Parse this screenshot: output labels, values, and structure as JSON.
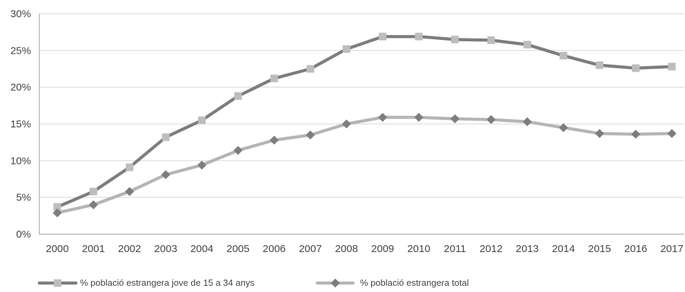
{
  "chart_data": {
    "type": "line",
    "title": "",
    "xlabel": "",
    "ylabel": "",
    "categories": [
      "2000",
      "2001",
      "2002",
      "2003",
      "2004",
      "2005",
      "2006",
      "2007",
      "2008",
      "2009",
      "2010",
      "2011",
      "2012",
      "2013",
      "2014",
      "2015",
      "2016",
      "2017"
    ],
    "ylim": [
      0,
      30
    ],
    "yticks": [
      0,
      5,
      10,
      15,
      20,
      25,
      30
    ],
    "ytick_labels": [
      "0%",
      "5%",
      "10%",
      "15%",
      "20%",
      "25%",
      "30%"
    ],
    "grid": true,
    "legend_position": "bottom-left",
    "series": [
      {
        "name": "% població estrangera jove de 15 a 34 anys",
        "marker": "square",
        "color": "#7d7d7d",
        "marker_color": "#bdbdbd",
        "values": [
          3.7,
          5.8,
          9.1,
          13.2,
          15.5,
          18.8,
          21.2,
          22.5,
          25.2,
          26.9,
          26.9,
          26.5,
          26.4,
          25.8,
          24.3,
          23.0,
          22.6,
          22.8
        ]
      },
      {
        "name": "% població estrangera total",
        "marker": "diamond",
        "color": "#b5b5b5",
        "marker_color": "#7d7d7d",
        "values": [
          2.9,
          4.0,
          5.8,
          8.1,
          9.4,
          11.4,
          12.8,
          13.5,
          15.0,
          15.9,
          15.9,
          15.7,
          15.6,
          15.3,
          14.5,
          13.7,
          13.6,
          13.7
        ]
      }
    ]
  }
}
